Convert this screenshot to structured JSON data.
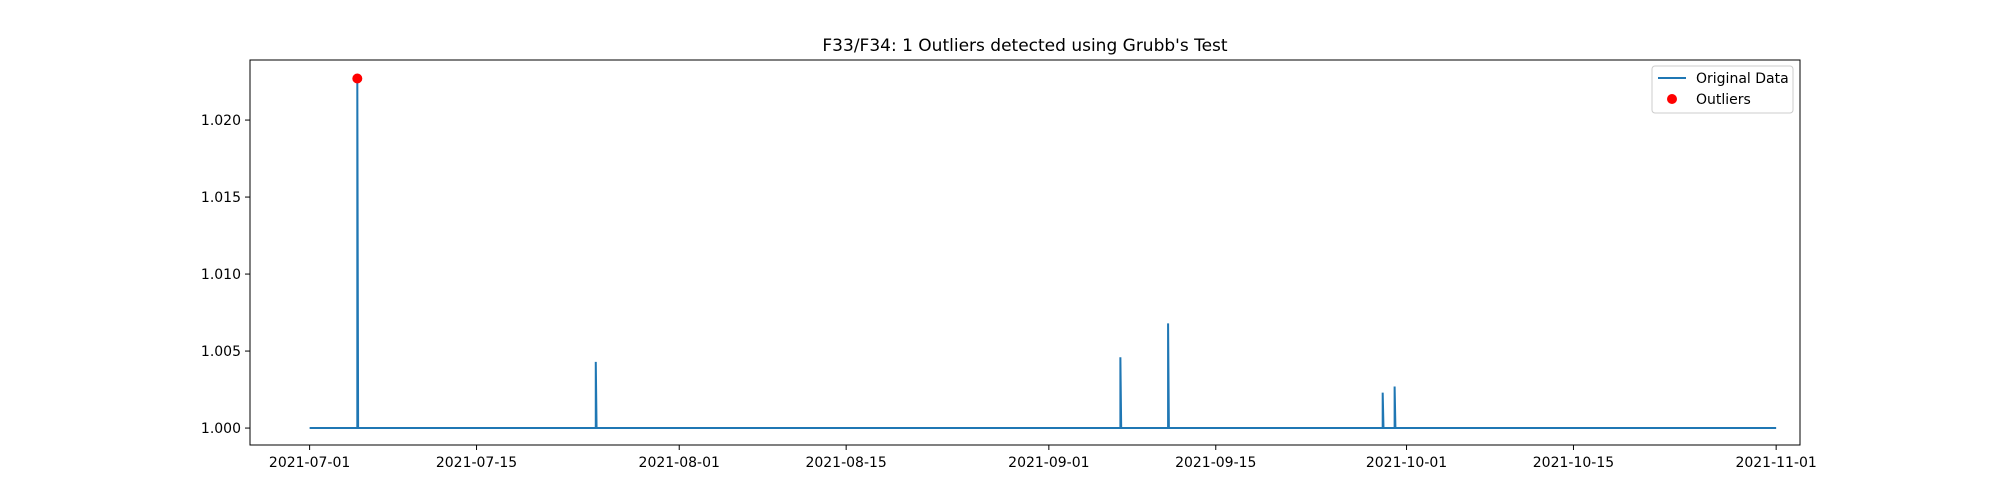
{
  "chart_data": {
    "type": "line",
    "title": "F33/F34: 1 Outliers detected using Grubb's Test",
    "xlabel": "",
    "ylabel": "",
    "x_type": "date",
    "xlim": [
      "2021-06-26",
      "2021-11-03"
    ],
    "ylim": [
      0.9989,
      1.0239
    ],
    "x_ticks": [
      "2021-07-01",
      "2021-07-15",
      "2021-08-01",
      "2021-08-15",
      "2021-09-01",
      "2021-09-15",
      "2021-10-01",
      "2021-10-15",
      "2021-11-01"
    ],
    "y_ticks": [
      "1.000",
      "1.005",
      "1.010",
      "1.015",
      "1.020"
    ],
    "grid": false,
    "legend_position": "top-right",
    "series": [
      {
        "name": "Original Data",
        "color": "#1f77b4",
        "marker": "line",
        "baseline": 1.0,
        "range": [
          "2021-07-01",
          "2021-11-01"
        ],
        "spikes": [
          {
            "x": "2021-07-05",
            "y": 1.0227
          },
          {
            "x": "2021-07-25",
            "y": 1.0043
          },
          {
            "x": "2021-09-07",
            "y": 1.0046
          },
          {
            "x": "2021-09-11",
            "y": 1.0068
          },
          {
            "x": "2021-09-29",
            "y": 1.0023
          },
          {
            "x": "2021-09-30",
            "y": 1.0027
          }
        ]
      },
      {
        "name": "Outliers",
        "color": "#ff0000",
        "marker": "point",
        "points": [
          {
            "x": "2021-07-05",
            "y": 1.0227
          }
        ]
      }
    ]
  }
}
